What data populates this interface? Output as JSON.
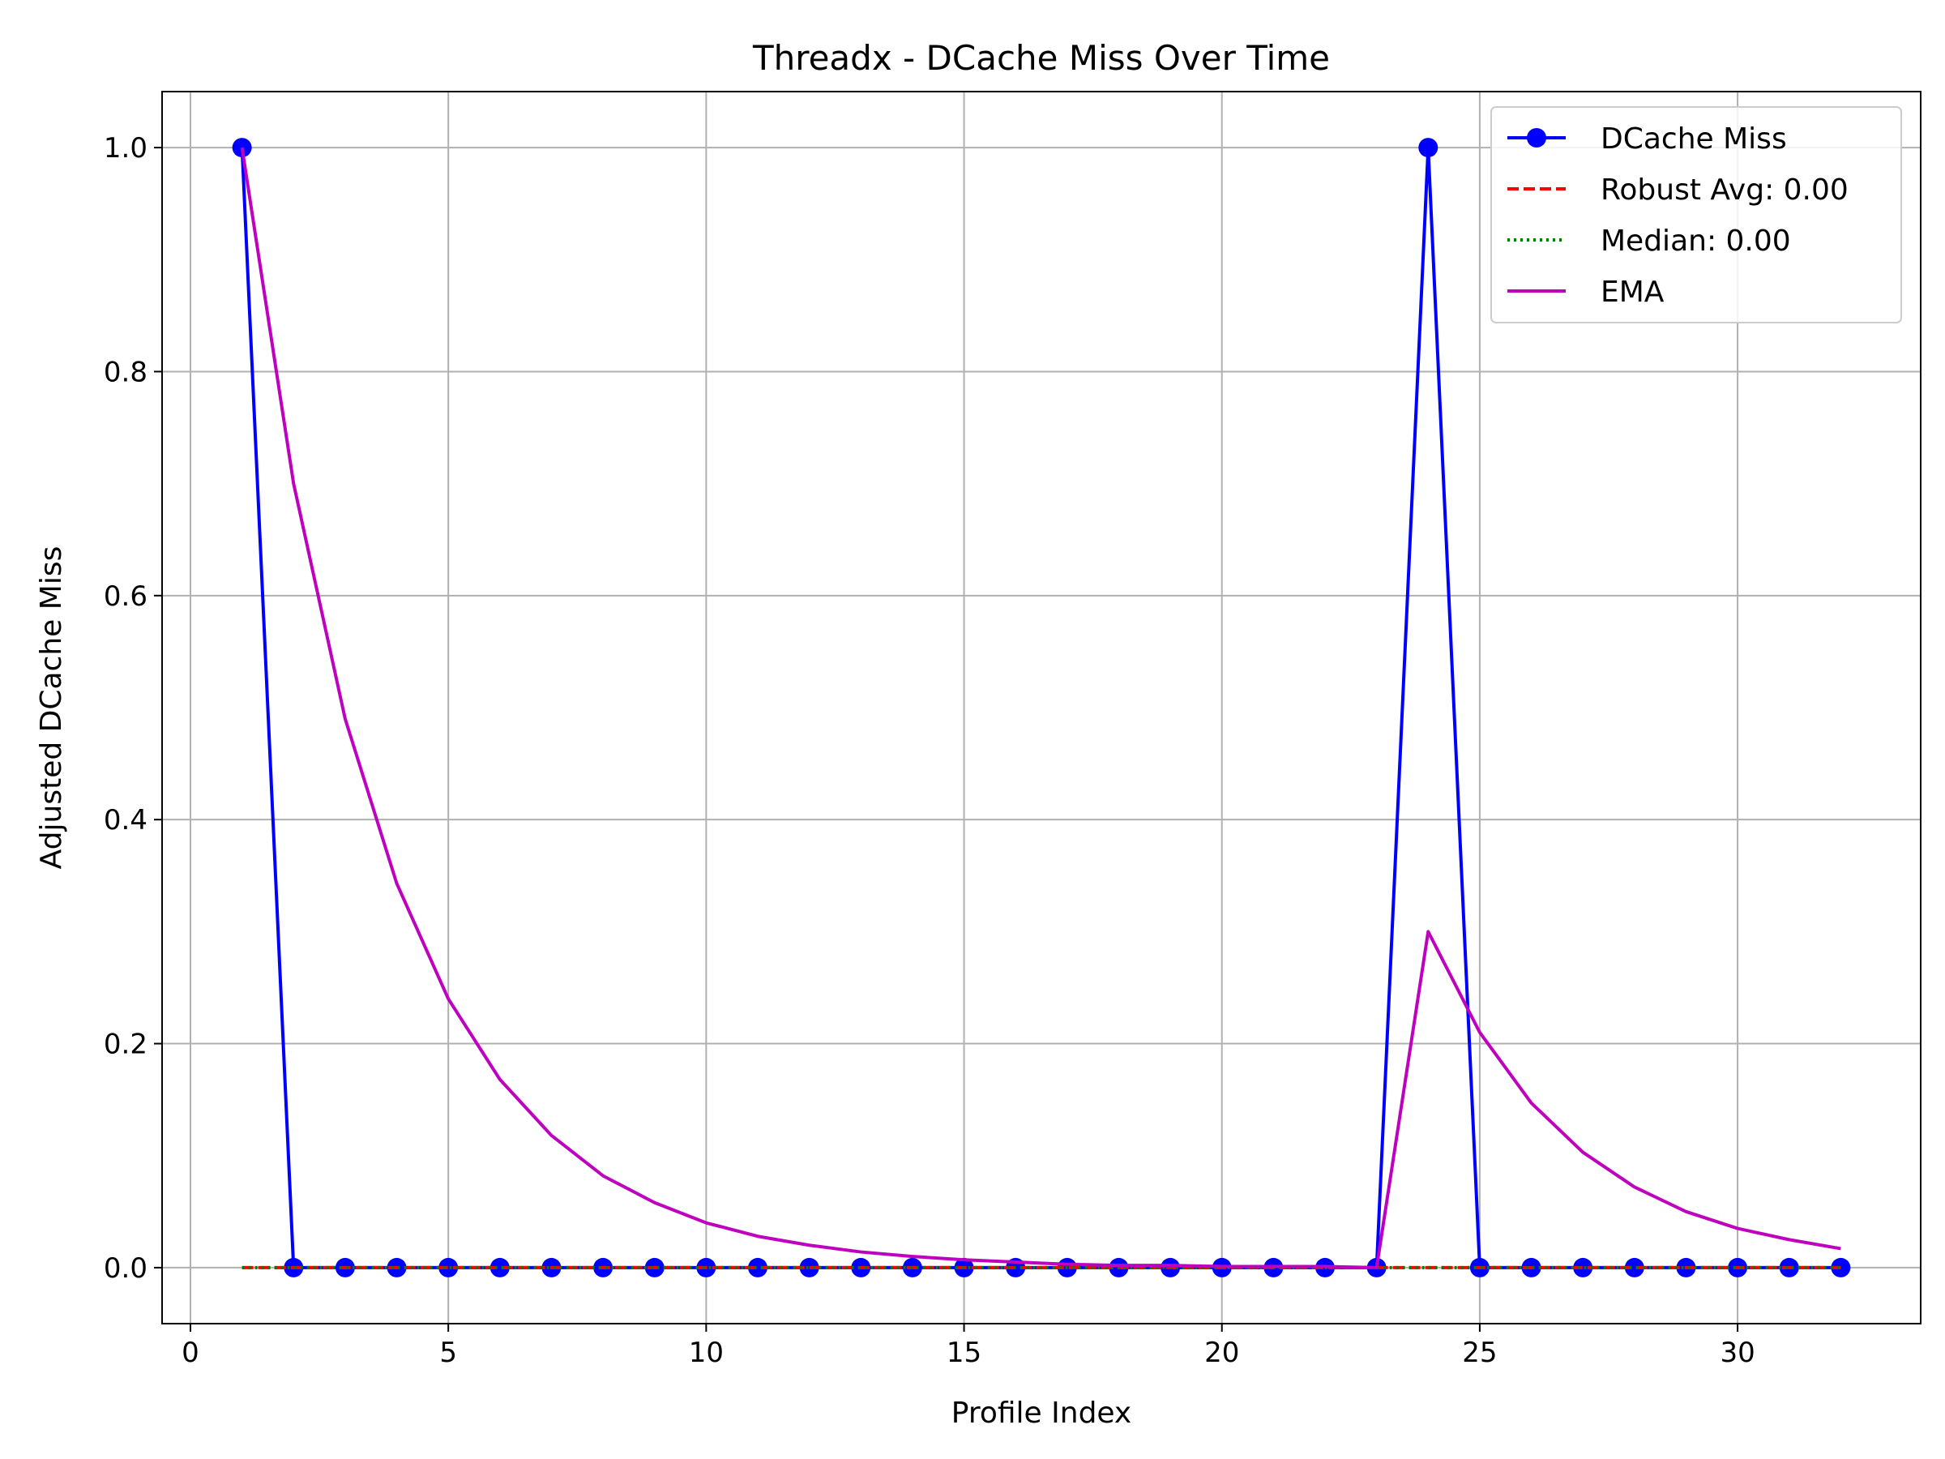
{
  "chart_data": {
    "type": "line",
    "title": "Threadx - DCache Miss Over Time",
    "xlabel": "Profile Index",
    "ylabel": "Adjusted DCache Miss",
    "xlim": [
      -0.55,
      33.55
    ],
    "ylim": [
      -0.05,
      1.05
    ],
    "xticks": [
      0,
      5,
      10,
      15,
      20,
      25,
      30
    ],
    "yticks": [
      0.0,
      0.2,
      0.4,
      0.6,
      0.8,
      1.0
    ],
    "xtick_labels": [
      "0",
      "5",
      "10",
      "15",
      "20",
      "25",
      "30"
    ],
    "ytick_labels": [
      "0.0",
      "0.2",
      "0.4",
      "0.6",
      "0.8",
      "1.0"
    ],
    "grid": true,
    "legend_position": "top-right",
    "x": [
      1,
      2,
      3,
      4,
      5,
      6,
      7,
      8,
      9,
      10,
      11,
      12,
      13,
      14,
      15,
      16,
      17,
      18,
      19,
      20,
      21,
      22,
      23,
      24,
      25,
      26,
      27,
      28,
      29,
      30,
      31,
      32
    ],
    "series": [
      {
        "name": "DCache Miss",
        "style": "solid-markers",
        "color": "#0000ff",
        "values": [
          1,
          0,
          0,
          0,
          0,
          0,
          0,
          0,
          0,
          0,
          0,
          0,
          0,
          0,
          0,
          0,
          0,
          0,
          0,
          0,
          0,
          0,
          0,
          1,
          0,
          0,
          0,
          0,
          0,
          0,
          0,
          0
        ]
      },
      {
        "name": "Robust Avg: 0.00",
        "style": "dashed",
        "color": "#ff0000",
        "values": [
          0,
          0,
          0,
          0,
          0,
          0,
          0,
          0,
          0,
          0,
          0,
          0,
          0,
          0,
          0,
          0,
          0,
          0,
          0,
          0,
          0,
          0,
          0,
          0,
          0,
          0,
          0,
          0,
          0,
          0,
          0,
          0
        ]
      },
      {
        "name": "Median: 0.00",
        "style": "dotted",
        "color": "#008000",
        "values": [
          0,
          0,
          0,
          0,
          0,
          0,
          0,
          0,
          0,
          0,
          0,
          0,
          0,
          0,
          0,
          0,
          0,
          0,
          0,
          0,
          0,
          0,
          0,
          0,
          0,
          0,
          0,
          0,
          0,
          0,
          0,
          0
        ]
      },
      {
        "name": "EMA",
        "style": "solid",
        "color": "#bf00bf",
        "values": [
          1.0,
          0.7,
          0.49,
          0.343,
          0.24,
          0.168,
          0.118,
          0.082,
          0.058,
          0.04,
          0.028,
          0.02,
          0.014,
          0.01,
          0.007,
          0.005,
          0.003,
          0.002,
          0.002,
          0.001,
          0.001,
          0.001,
          0.0,
          0.3,
          0.21,
          0.147,
          0.103,
          0.072,
          0.05,
          0.035,
          0.025,
          0.017
        ]
      }
    ]
  }
}
